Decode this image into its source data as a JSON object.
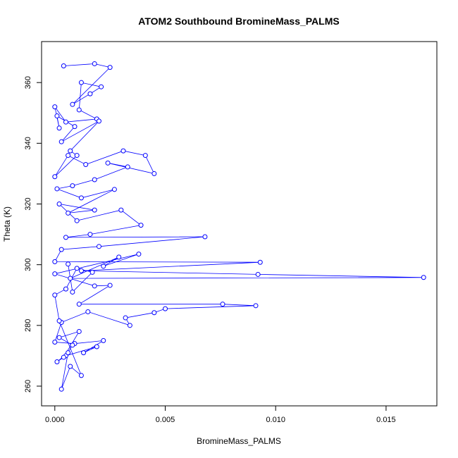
{
  "chart_data": {
    "type": "scatter",
    "connected_points": true,
    "title": "ATOM2 Southbound BromineMass_PALMS",
    "xlabel": "BromineMass_PALMS",
    "ylabel": "Theta (K)",
    "xlim": [
      -0.0006,
      0.0173
    ],
    "ylim": [
      253.5,
      373.5
    ],
    "xticks": [
      0.0,
      0.005,
      0.01,
      0.015
    ],
    "xtick_labels": [
      "0.000",
      "0.005",
      "0.010",
      "0.015"
    ],
    "yticks": [
      260,
      280,
      300,
      320,
      340,
      360
    ],
    "ytick_labels": [
      "260",
      "280",
      "300",
      "320",
      "340",
      "360"
    ],
    "grid": false,
    "legend": "none",
    "marker": "open-circle",
    "series_color": "#0000ff",
    "series": [
      {
        "x": [
          0.0004,
          0.0018,
          0.0025,
          0.0008,
          0.0016,
          0.0021,
          0.0012,
          0.0011,
          0.0019,
          0.0005,
          0.0,
          0.0002,
          0.0001,
          0.0009,
          0.0003,
          0.002,
          0.0007,
          0.001,
          0.0,
          0.0006,
          0.0014,
          0.0031,
          0.0041,
          0.0045,
          0.0024,
          0.0033,
          0.0018,
          0.0008,
          0.0001,
          0.0012,
          0.0027,
          0.0006,
          0.0018,
          0.0002,
          0.001,
          0.003,
          0.0039,
          0.0016,
          0.0005,
          0.0068,
          0.002,
          0.0003,
          0.0,
          0.0093,
          0.0012,
          0.0092,
          0.0167,
          0.0007,
          0.0029,
          0.0022,
          0.0038,
          0.0,
          0.0018,
          0.0025,
          0.0011,
          0.0076,
          0.0091,
          0.005,
          0.0045,
          0.0032,
          0.0034,
          0.0015,
          0.0003,
          0.0,
          0.0009,
          0.0022,
          0.0013,
          0.0019,
          0.0005,
          0.0008,
          0.0002,
          0.0011,
          0.0004,
          0.0001,
          0.0006,
          0.0003,
          0.0007,
          0.0012,
          0.0002,
          0.0,
          0.0005,
          0.001,
          0.0017,
          0.0008,
          0.0006
        ],
        "y": [
          365.5,
          366.2,
          365.0,
          352.8,
          356.3,
          358.6,
          360.0,
          351.0,
          348.0,
          347.0,
          352.0,
          345.0,
          349.0,
          345.5,
          340.5,
          347.3,
          337.5,
          336.0,
          329.0,
          336.0,
          333.0,
          337.5,
          336.0,
          330.0,
          333.5,
          332.2,
          328.0,
          326.0,
          325.0,
          322.0,
          324.8,
          317.0,
          318.0,
          320.0,
          314.5,
          318.0,
          313.0,
          310.0,
          309.0,
          309.2,
          306.0,
          305.0,
          301.0,
          300.8,
          298.0,
          296.8,
          295.8,
          295.5,
          302.5,
          299.5,
          303.5,
          297.0,
          293.0,
          293.2,
          287.0,
          287.0,
          286.5,
          285.5,
          284.2,
          282.5,
          280.0,
          284.5,
          281.0,
          274.5,
          274.0,
          275.0,
          271.0,
          273.0,
          270.0,
          273.5,
          276.0,
          278.0,
          269.5,
          268.0,
          271.0,
          259.0,
          266.5,
          263.5,
          281.5,
          290.0,
          292.0,
          298.8,
          297.5,
          291.0,
          300.2
        ]
      }
    ]
  }
}
